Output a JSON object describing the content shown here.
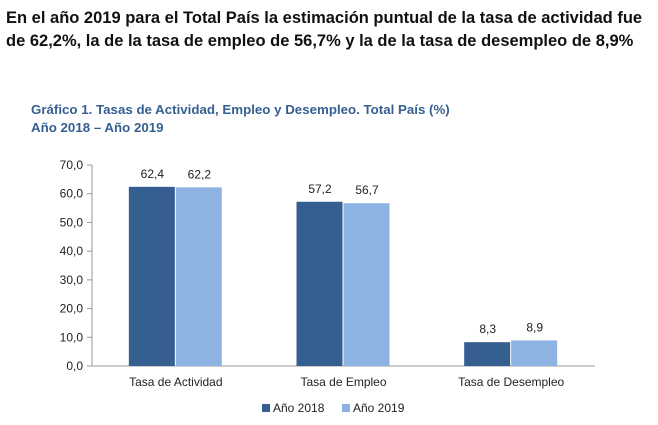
{
  "headline": "En el año 2019 para el Total País la estimación puntual de la tasa de actividad fue de 62,2%, la de la tasa de empleo de 56,7% y la de la tasa de desempleo de 8,9%",
  "chart_data": {
    "type": "bar",
    "title": "Gráfico 1. Tasas de Actividad, Empleo y Desempleo. Total País (%)",
    "subtitle": "Año 2018 – Año 2019",
    "categories": [
      "Tasa de Actividad",
      "Tasa de Empleo",
      "Tasa de Desempleo"
    ],
    "series": [
      {
        "name": "Año 2018",
        "values": [
          62.4,
          57.2,
          8.3
        ],
        "labels": [
          "62,4",
          "57,2",
          "8,3"
        ],
        "color": "#365f91"
      },
      {
        "name": "Año 2019",
        "values": [
          62.2,
          56.7,
          8.9
        ],
        "labels": [
          "62,2",
          "56,7",
          "8,9"
        ],
        "color": "#8db3e2"
      }
    ],
    "ylim": [
      0,
      70
    ],
    "yticks": [
      "0,0",
      "10,0",
      "20,0",
      "30,0",
      "40,0",
      "50,0",
      "60,0",
      "70,0"
    ],
    "grid": false,
    "legend": "bottom"
  }
}
